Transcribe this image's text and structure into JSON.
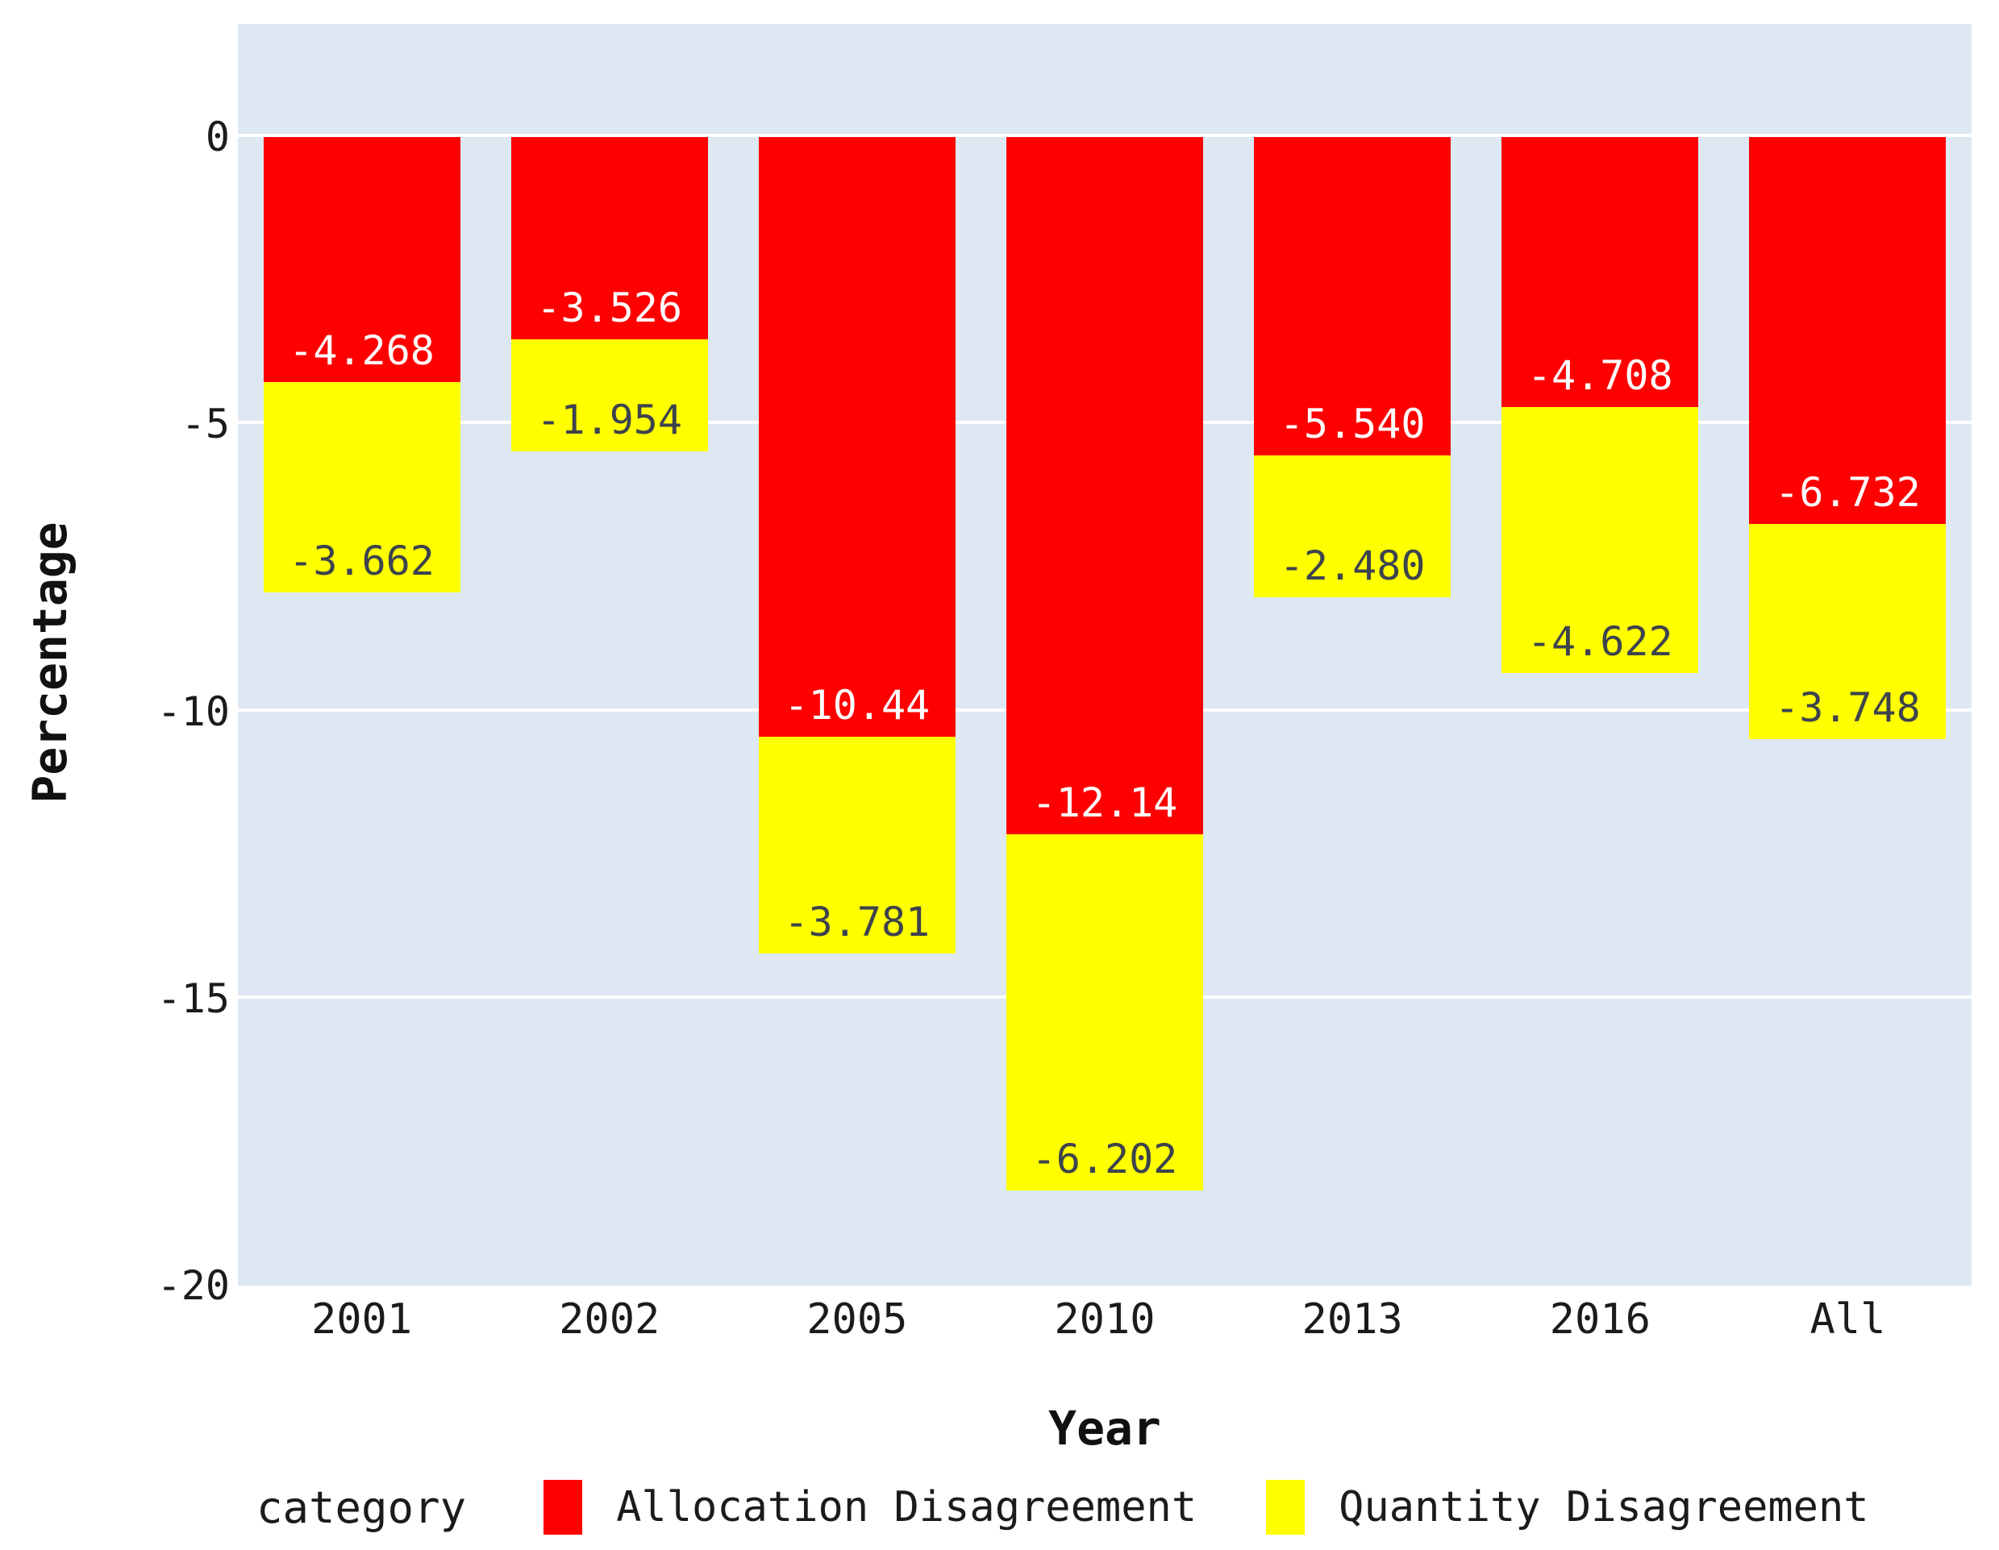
{
  "chart_data": {
    "type": "bar",
    "stacked": true,
    "title": "",
    "xlabel": "Year",
    "ylabel": "Percentage",
    "ylim": [
      -20,
      0
    ],
    "yticks": [
      0,
      -5,
      -10,
      -15,
      -20
    ],
    "ytick_labels": [
      "0",
      "-5",
      "-10",
      "-15",
      "-20"
    ],
    "categories": [
      "2001",
      "2002",
      "2005",
      "2010",
      "2013",
      "2016",
      "All"
    ],
    "series": [
      {
        "name": "Allocation Disagreement",
        "color": "#fe0000",
        "label_color": "#ffffff",
        "values": [
          -4.268,
          -3.526,
          -10.44,
          -12.14,
          -5.54,
          -4.708,
          -6.732
        ],
        "labels": [
          "-4.268",
          "-3.526",
          "-10.44",
          "-12.14",
          "-5.540",
          "-4.708",
          "-6.732"
        ]
      },
      {
        "name": "Quantity Disagreement",
        "color": "#ffff00",
        "label_color": "#3d434d",
        "values": [
          -3.662,
          -1.954,
          -3.781,
          -6.202,
          -2.48,
          -4.622,
          -3.748
        ],
        "labels": [
          "-3.662",
          "-1.954",
          "-3.781",
          "-6.202",
          "-2.480",
          "-4.622",
          "-3.748"
        ]
      }
    ],
    "legend": {
      "title": "category",
      "position": "bottom"
    },
    "style": {
      "plot_background": "#dde8f2",
      "grid_color": "#ffffff",
      "axis_text_color": "#1b1b1b"
    },
    "grid": true
  }
}
